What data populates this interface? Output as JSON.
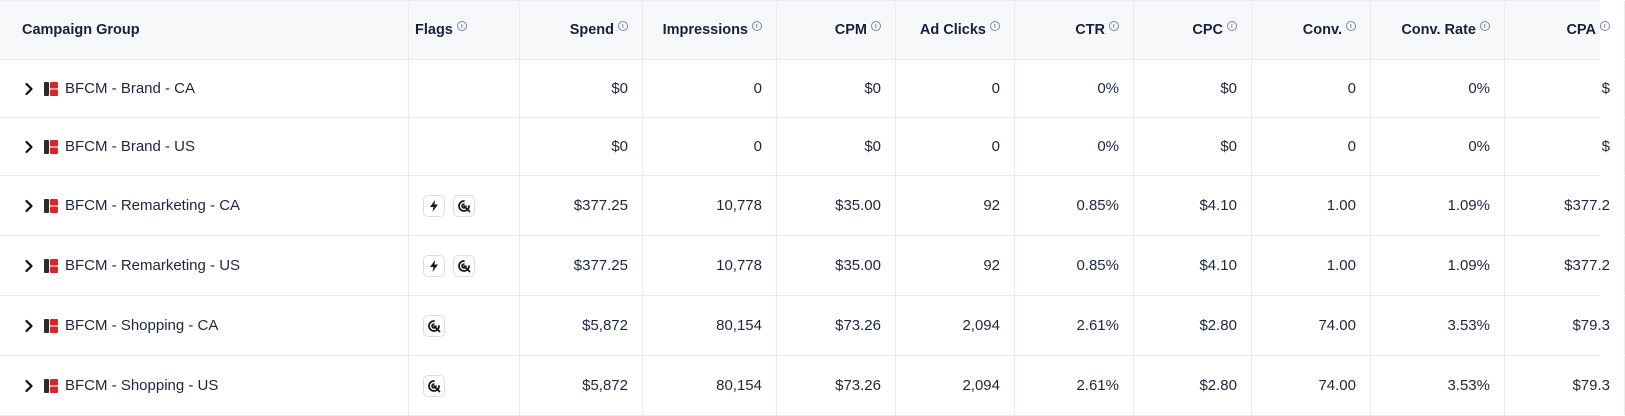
{
  "columns": [
    {
      "key": "campaign_group",
      "label": "Campaign Group",
      "info": false
    },
    {
      "key": "flags",
      "label": "Flags",
      "info": true
    },
    {
      "key": "spend",
      "label": "Spend",
      "info": true
    },
    {
      "key": "impressions",
      "label": "Impressions",
      "info": true
    },
    {
      "key": "cpm",
      "label": "CPM",
      "info": true
    },
    {
      "key": "ad_clicks",
      "label": "Ad Clicks",
      "info": true
    },
    {
      "key": "ctr",
      "label": "CTR",
      "info": true
    },
    {
      "key": "cpc",
      "label": "CPC",
      "info": true
    },
    {
      "key": "conv",
      "label": "Conv.",
      "info": true
    },
    {
      "key": "conv_rate",
      "label": "Conv. Rate",
      "info": true
    },
    {
      "key": "cpa",
      "label": "CPA",
      "info": true
    }
  ],
  "rows": [
    {
      "name": "BFCM - Brand - CA",
      "flags": [],
      "spend": "$0",
      "impressions": "0",
      "cpm": "$0",
      "ad_clicks": "0",
      "ctr": "0%",
      "cpc": "$0",
      "conv": "0",
      "conv_rate": "0%",
      "cpa": "$"
    },
    {
      "name": "BFCM - Brand - US",
      "flags": [],
      "spend": "$0",
      "impressions": "0",
      "cpm": "$0",
      "ad_clicks": "0",
      "ctr": "0%",
      "cpc": "$0",
      "conv": "0",
      "conv_rate": "0%",
      "cpa": "$"
    },
    {
      "name": "BFCM - Remarketing - CA",
      "flags": [
        "lightning-icon",
        "target-icon"
      ],
      "spend": "$377.25",
      "impressions": "10,778",
      "cpm": "$35.00",
      "ad_clicks": "92",
      "ctr": "0.85%",
      "cpc": "$4.10",
      "conv": "1.00",
      "conv_rate": "1.09%",
      "cpa": "$377.2"
    },
    {
      "name": "BFCM - Remarketing - US",
      "flags": [
        "lightning-icon",
        "target-icon"
      ],
      "spend": "$377.25",
      "impressions": "10,778",
      "cpm": "$35.00",
      "ad_clicks": "92",
      "ctr": "0.85%",
      "cpc": "$4.10",
      "conv": "1.00",
      "conv_rate": "1.09%",
      "cpa": "$377.2"
    },
    {
      "name": "BFCM - Shopping - CA",
      "flags": [
        "target-icon"
      ],
      "spend": "$5,872",
      "impressions": "80,154",
      "cpm": "$73.26",
      "ad_clicks": "2,094",
      "ctr": "2.61%",
      "cpc": "$2.80",
      "conv": "74.00",
      "conv_rate": "3.53%",
      "cpa": "$79.3"
    },
    {
      "name": "BFCM - Shopping - US",
      "flags": [
        "target-icon"
      ],
      "spend": "$5,872",
      "impressions": "80,154",
      "cpm": "$73.26",
      "ad_clicks": "2,094",
      "ctr": "2.61%",
      "cpc": "$2.80",
      "conv": "74.00",
      "conv_rate": "3.53%",
      "cpa": "$79.3"
    }
  ],
  "colors": {
    "brand_logo": "#d9252a",
    "logo_dark": "#2b2b2b",
    "info_icon": "#7a86a8",
    "border": "#e7eaf0",
    "header_bg": "#f7f8fa"
  }
}
